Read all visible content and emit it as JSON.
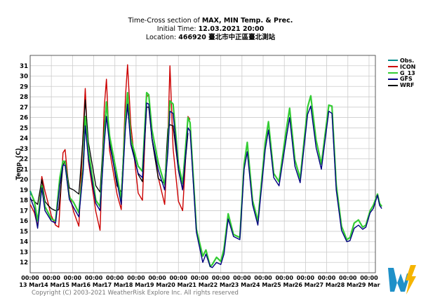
{
  "header": {
    "line1_prefix": "Time-Cross section of ",
    "line1_bold": "MAX, MIN Temp. & Prec.",
    "line2_prefix": "Initial Time: ",
    "line2_bold": "12.03.2021 20:00",
    "line3_prefix": "Location: ",
    "line3_bold": "466920 臺北市中正區臺北測站"
  },
  "copyright": "Copyright (C) 2003-2021 WeatherRisk Explore Inc. All rights reserved",
  "logo_alt": "WeatherRisk logo",
  "colors": {
    "Obs.": "#008b8b",
    "ICON": "#cc0000",
    "G_13": "#33cc33",
    "GFS": "#000080",
    "WRF": "#000000",
    "grid": "#cccccc",
    "logo_blue": "#1e90c8",
    "logo_yellow": "#f5b400"
  },
  "chart_data": {
    "type": "line",
    "title": "Time-Cross section of MAX, MIN Temp. & Prec.",
    "xlabel": "",
    "ylabel": "Temp. (C)",
    "xlim": [
      0,
      16.3
    ],
    "ylim": [
      11,
      32
    ],
    "yticks": [
      12,
      13,
      14,
      15,
      16,
      17,
      18,
      19,
      20,
      21,
      22,
      23,
      24,
      25,
      26,
      27,
      28,
      29,
      30,
      31
    ],
    "xticks": [
      {
        "x": 0,
        "time": "00:00",
        "date": "13 Mar"
      },
      {
        "x": 1,
        "time": "00:00",
        "date": "14 Mar"
      },
      {
        "x": 2,
        "time": "00:00",
        "date": "15 Mar"
      },
      {
        "x": 3,
        "time": "00:00",
        "date": "16 Mar"
      },
      {
        "x": 4,
        "time": "00:00",
        "date": "17 Mar"
      },
      {
        "x": 5,
        "time": "00:00",
        "date": "18 Mar"
      },
      {
        "x": 6,
        "time": "00:00",
        "date": "19 Mar"
      },
      {
        "x": 7,
        "time": "00:00",
        "date": "20 Mar"
      },
      {
        "x": 8,
        "time": "00:00",
        "date": "21 Mar"
      },
      {
        "x": 9,
        "time": "00:00",
        "date": "22 Mar"
      },
      {
        "x": 10,
        "time": "00:00",
        "date": "23 Mar"
      },
      {
        "x": 11,
        "time": "00:00",
        "date": "24 Mar"
      },
      {
        "x": 12,
        "time": "00:00",
        "date": "25 Mar"
      },
      {
        "x": 13,
        "time": "00:00",
        "date": "26 Mar"
      },
      {
        "x": 14,
        "time": "00:00",
        "date": "27 Mar"
      },
      {
        "x": 15,
        "time": "00:00",
        "date": "28 Mar"
      },
      {
        "x": 16,
        "time": "00:00",
        "date": "29 Mar"
      }
    ],
    "grid": true,
    "legend_position": "right",
    "series": [
      {
        "name": "Obs.",
        "points": [
          [
            0,
            18.9
          ],
          [
            0.05,
            18.5
          ]
        ]
      },
      {
        "name": "ICON",
        "points": [
          [
            0,
            17.6
          ],
          [
            0.2,
            16.8
          ],
          [
            0.35,
            15.5
          ],
          [
            0.55,
            20.3
          ],
          [
            0.7,
            18.9
          ],
          [
            1.0,
            16.5
          ],
          [
            1.2,
            15.6
          ],
          [
            1.35,
            15.4
          ],
          [
            1.55,
            22.6
          ],
          [
            1.65,
            22.9
          ],
          [
            1.85,
            18.6
          ],
          [
            2.05,
            16.9
          ],
          [
            2.3,
            15.5
          ],
          [
            2.5,
            24.6
          ],
          [
            2.6,
            28.8
          ],
          [
            2.75,
            21.8
          ],
          [
            3.1,
            16.9
          ],
          [
            3.3,
            15.1
          ],
          [
            3.5,
            27.0
          ],
          [
            3.6,
            29.7
          ],
          [
            3.75,
            22.8
          ],
          [
            4.1,
            18.6
          ],
          [
            4.3,
            17.1
          ],
          [
            4.5,
            28.0
          ],
          [
            4.6,
            31.1
          ],
          [
            4.75,
            25.3
          ],
          [
            5.1,
            18.7
          ],
          [
            5.3,
            18.0
          ],
          [
            5.5,
            28.0
          ],
          [
            5.6,
            28.2
          ],
          [
            5.75,
            24.0
          ],
          [
            6.05,
            20.2
          ],
          [
            6.35,
            17.6
          ],
          [
            6.5,
            24.0
          ],
          [
            6.6,
            31.0
          ],
          [
            6.75,
            23.0
          ],
          [
            7.0,
            17.9
          ],
          [
            7.2,
            17.0
          ],
          [
            7.45,
            26.1
          ],
          [
            7.55,
            25.8
          ]
        ]
      },
      {
        "name": "G_13",
        "points": [
          [
            0,
            18.9
          ],
          [
            0.2,
            17.9
          ],
          [
            0.35,
            16.0
          ],
          [
            0.55,
            19.4
          ],
          [
            0.7,
            17.4
          ],
          [
            1.0,
            16.2
          ],
          [
            1.2,
            16.0
          ],
          [
            1.4,
            20.2
          ],
          [
            1.55,
            21.8
          ],
          [
            1.65,
            21.7
          ],
          [
            1.85,
            18.3
          ],
          [
            2.05,
            17.8
          ],
          [
            2.3,
            16.8
          ],
          [
            2.5,
            21.2
          ],
          [
            2.6,
            26.1
          ],
          [
            2.75,
            22.8
          ],
          [
            3.1,
            18.0
          ],
          [
            3.3,
            17.4
          ],
          [
            3.5,
            24.2
          ],
          [
            3.6,
            27.5
          ],
          [
            3.75,
            24.2
          ],
          [
            4.1,
            20.4
          ],
          [
            4.3,
            18.0
          ],
          [
            4.5,
            26.0
          ],
          [
            4.6,
            28.4
          ],
          [
            4.75,
            24.0
          ],
          [
            5.1,
            21.3
          ],
          [
            5.3,
            20.8
          ],
          [
            5.5,
            28.4
          ],
          [
            5.6,
            28.2
          ],
          [
            5.75,
            24.8
          ],
          [
            6.05,
            21.6
          ],
          [
            6.35,
            19.5
          ],
          [
            6.5,
            23.2
          ],
          [
            6.6,
            27.6
          ],
          [
            6.75,
            27.3
          ],
          [
            7.0,
            21.5
          ],
          [
            7.2,
            19.6
          ],
          [
            7.45,
            26.0
          ],
          [
            7.55,
            25.5
          ],
          [
            7.85,
            15.2
          ],
          [
            8.15,
            12.6
          ],
          [
            8.3,
            13.2
          ],
          [
            8.5,
            11.6
          ],
          [
            8.6,
            11.8
          ],
          [
            8.8,
            12.5
          ],
          [
            9.0,
            12.1
          ],
          [
            9.15,
            13.3
          ],
          [
            9.35,
            16.7
          ],
          [
            9.6,
            14.7
          ],
          [
            9.9,
            14.4
          ],
          [
            10.1,
            21.5
          ],
          [
            10.25,
            23.6
          ],
          [
            10.5,
            18.0
          ],
          [
            10.75,
            16.0
          ],
          [
            11.1,
            23.6
          ],
          [
            11.25,
            25.6
          ],
          [
            11.5,
            20.6
          ],
          [
            11.75,
            19.8
          ],
          [
            12.1,
            24.9
          ],
          [
            12.25,
            26.9
          ],
          [
            12.5,
            21.9
          ],
          [
            12.75,
            20.1
          ],
          [
            13.1,
            27.0
          ],
          [
            13.25,
            28.1
          ],
          [
            13.5,
            23.8
          ],
          [
            13.75,
            21.5
          ],
          [
            14.1,
            27.2
          ],
          [
            14.25,
            27.1
          ],
          [
            14.45,
            19.5
          ],
          [
            14.7,
            15.5
          ],
          [
            14.95,
            14.2
          ],
          [
            15.1,
            14.4
          ],
          [
            15.3,
            15.8
          ],
          [
            15.5,
            16.1
          ],
          [
            15.7,
            15.4
          ],
          [
            15.85,
            15.6
          ],
          [
            16.05,
            17.0
          ],
          [
            16.2,
            17.5
          ],
          [
            16.4,
            18.6
          ],
          [
            16.5,
            17.7
          ],
          [
            16.6,
            17.4
          ]
        ]
      },
      {
        "name": "GFS",
        "points": [
          [
            0,
            18.3
          ],
          [
            0.2,
            17.2
          ],
          [
            0.35,
            15.3
          ],
          [
            0.55,
            19.2
          ],
          [
            0.7,
            17.0
          ],
          [
            1.0,
            16.0
          ],
          [
            1.2,
            15.8
          ],
          [
            1.4,
            19.5
          ],
          [
            1.55,
            21.4
          ],
          [
            1.65,
            21.4
          ],
          [
            1.85,
            18.1
          ],
          [
            2.05,
            17.3
          ],
          [
            2.3,
            16.4
          ],
          [
            2.5,
            20.8
          ],
          [
            2.6,
            25.2
          ],
          [
            2.75,
            22.0
          ],
          [
            3.1,
            17.7
          ],
          [
            3.3,
            17.0
          ],
          [
            3.5,
            23.5
          ],
          [
            3.6,
            26.1
          ],
          [
            3.75,
            23.4
          ],
          [
            4.1,
            19.8
          ],
          [
            4.3,
            17.6
          ],
          [
            4.5,
            25.0
          ],
          [
            4.6,
            27.3
          ],
          [
            4.75,
            23.4
          ],
          [
            5.1,
            20.6
          ],
          [
            5.3,
            20.2
          ],
          [
            5.5,
            27.4
          ],
          [
            5.6,
            27.3
          ],
          [
            5.75,
            24.0
          ],
          [
            6.05,
            20.9
          ],
          [
            6.35,
            19.0
          ],
          [
            6.5,
            22.6
          ],
          [
            6.6,
            26.6
          ],
          [
            6.75,
            26.4
          ],
          [
            7.0,
            21.0
          ],
          [
            7.2,
            19.0
          ],
          [
            7.45,
            25.0
          ],
          [
            7.55,
            24.7
          ],
          [
            7.85,
            14.9
          ],
          [
            8.15,
            12.0
          ],
          [
            8.3,
            12.8
          ],
          [
            8.5,
            11.6
          ],
          [
            8.6,
            11.5
          ],
          [
            8.8,
            12.0
          ],
          [
            9.0,
            11.8
          ],
          [
            9.15,
            12.8
          ],
          [
            9.35,
            16.2
          ],
          [
            9.6,
            14.5
          ],
          [
            9.9,
            14.2
          ],
          [
            10.1,
            21.0
          ],
          [
            10.25,
            22.7
          ],
          [
            10.5,
            17.6
          ],
          [
            10.75,
            15.6
          ],
          [
            11.1,
            22.9
          ],
          [
            11.25,
            24.8
          ],
          [
            11.5,
            20.2
          ],
          [
            11.75,
            19.4
          ],
          [
            12.1,
            24.1
          ],
          [
            12.25,
            26.0
          ],
          [
            12.5,
            21.3
          ],
          [
            12.75,
            19.7
          ],
          [
            13.1,
            26.3
          ],
          [
            13.25,
            27.1
          ],
          [
            13.5,
            23.1
          ],
          [
            13.75,
            21.0
          ],
          [
            14.1,
            26.6
          ],
          [
            14.25,
            26.4
          ],
          [
            14.45,
            19.0
          ],
          [
            14.7,
            15.1
          ],
          [
            14.95,
            14.0
          ],
          [
            15.1,
            14.1
          ],
          [
            15.3,
            15.3
          ],
          [
            15.5,
            15.6
          ],
          [
            15.7,
            15.2
          ],
          [
            15.85,
            15.4
          ],
          [
            16.05,
            16.8
          ],
          [
            16.2,
            17.2
          ],
          [
            16.4,
            18.5
          ],
          [
            16.5,
            17.5
          ],
          [
            16.6,
            17.2
          ]
        ]
      },
      {
        "name": "WRF",
        "points": [
          [
            0,
            18.1
          ],
          [
            0.2,
            17.9
          ],
          [
            0.35,
            17.6
          ],
          [
            0.55,
            20.0
          ],
          [
            0.7,
            17.9
          ],
          [
            0.85,
            17.5
          ],
          [
            1.0,
            17.2
          ],
          [
            1.2,
            17.0
          ],
          [
            1.35,
            17.1
          ],
          [
            1.55,
            21.4
          ],
          [
            1.65,
            21.8
          ],
          [
            1.85,
            19.2
          ],
          [
            2.05,
            19.0
          ],
          [
            2.3,
            18.6
          ],
          [
            2.5,
            24.2
          ],
          [
            2.6,
            27.7
          ],
          [
            2.75,
            23.6
          ],
          [
            3.1,
            19.4
          ],
          [
            3.3,
            18.8
          ],
          [
            3.5,
            25.2
          ],
          [
            3.6,
            27.5
          ],
          [
            3.75,
            23.8
          ],
          [
            4.1,
            19.4
          ],
          [
            4.3,
            18.8
          ],
          [
            4.5,
            25.6
          ],
          [
            4.6,
            27.0
          ],
          [
            4.75,
            23.9
          ],
          [
            5.1,
            20.5
          ],
          [
            5.3,
            19.8
          ],
          [
            5.5,
            27.0
          ],
          [
            5.6,
            27.0
          ],
          [
            5.75,
            23.9
          ],
          [
            6.05,
            20.1
          ],
          [
            6.35,
            19.6
          ],
          [
            6.5,
            24.9
          ],
          [
            6.6,
            25.3
          ],
          [
            6.75,
            25.2
          ],
          [
            7.0,
            20.9
          ],
          [
            7.2,
            19.0
          ],
          [
            7.45,
            24.5
          ]
        ]
      }
    ]
  }
}
